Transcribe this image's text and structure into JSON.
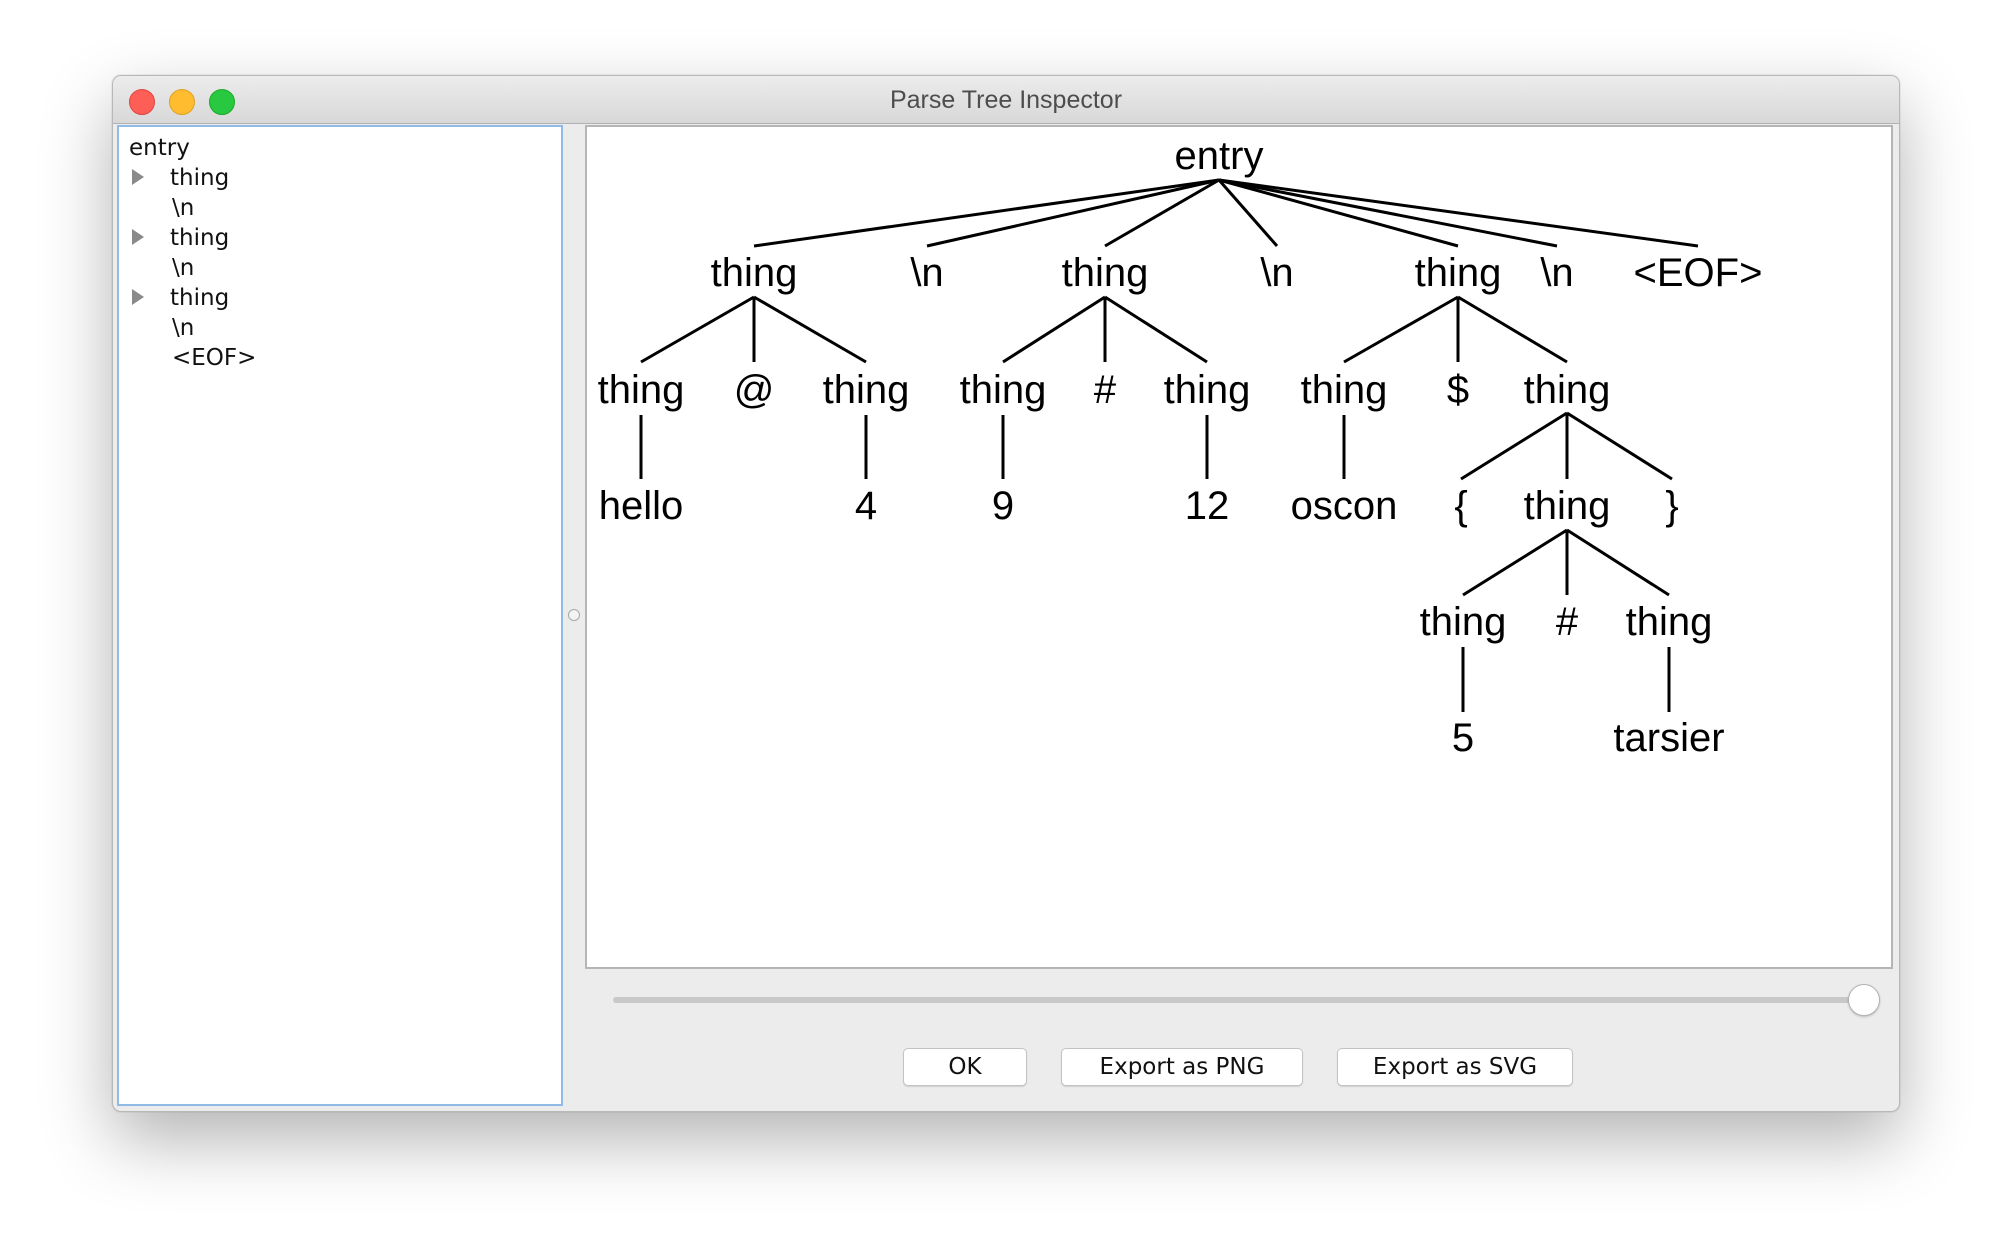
{
  "window": {
    "title": "Parse Tree Inspector"
  },
  "tree_list": {
    "items": [
      {
        "label": "entry",
        "expandable": false
      },
      {
        "label": "thing",
        "expandable": true
      },
      {
        "label": "\\n",
        "expandable": false
      },
      {
        "label": "thing",
        "expandable": true
      },
      {
        "label": "\\n",
        "expandable": false
      },
      {
        "label": "thing",
        "expandable": true
      },
      {
        "label": "\\n",
        "expandable": false
      },
      {
        "label": "<EOF>",
        "expandable": false
      }
    ]
  },
  "parse_tree": {
    "root": "entry",
    "nodes": {
      "n0": "entry",
      "n1": "thing",
      "n2": "\\n",
      "n3": "thing",
      "n4": "\\n",
      "n5": "thing",
      "n6": "\\n",
      "n7": "<EOF>",
      "n8": "thing",
      "n9": "@",
      "n10": "thing",
      "n11": "thing",
      "n12": "#",
      "n13": "thing",
      "n14": "thing",
      "n15": "$",
      "n16": "thing",
      "n17": "hello",
      "n18": "4",
      "n19": "9",
      "n20": "12",
      "n21": "oscon",
      "n22": "{",
      "n23": "thing",
      "n24": "}",
      "n25": "thing",
      "n26": "#",
      "n27": "thing",
      "n28": "5",
      "n29": "tarsier"
    }
  },
  "slider": {
    "value_fraction": 1.0
  },
  "buttons": {
    "ok": "OK",
    "export_png": "Export as PNG",
    "export_svg": "Export as SVG"
  }
}
